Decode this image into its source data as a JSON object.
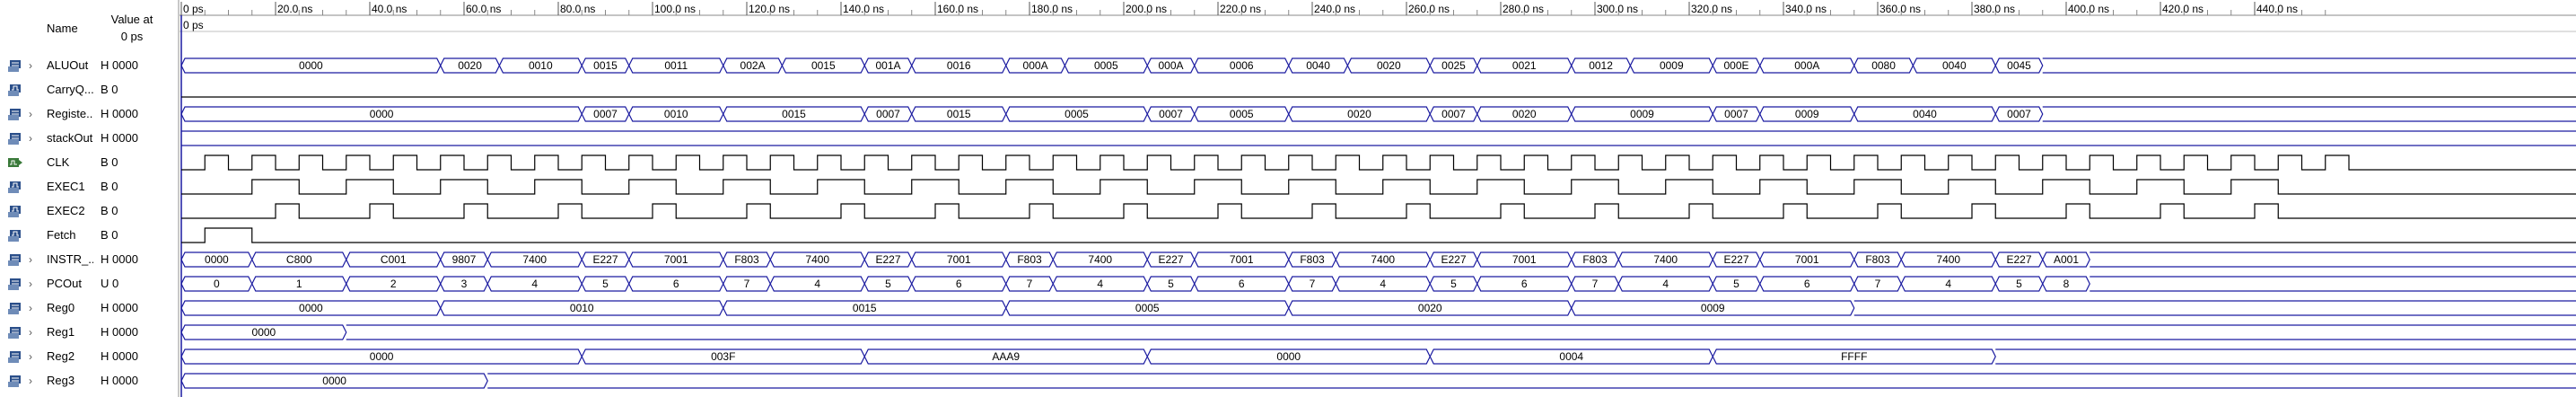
{
  "header": {
    "name_label": "Name",
    "value_label_line1": "Value at",
    "value_label_line2": "0 ps",
    "cursor_label": "0 ps"
  },
  "timeline": {
    "unit": "ns",
    "range_ns": [
      0,
      450
    ],
    "tick_labels": [
      "0 ps",
      "20.0 ns",
      "40.0 ns",
      "60.0 ns",
      "80.0 ns",
      "100.0 ns",
      "120.0 ns",
      "140.0 ns",
      "160.0 ns",
      "180.0 ns",
      "200.0 ns",
      "220.0 ns",
      "240.0 ns",
      "260.0 ns",
      "280.0 ns",
      "300.0 ns",
      "320.0 ns",
      "340.0 ns",
      "360.0 ns",
      "380.0 ns",
      "400.0 ns",
      "420.0 ns",
      "440.0 ns"
    ]
  },
  "colors": {
    "bus": "#1a1aa0",
    "bit": "#000000",
    "grid": "#b0b0b0",
    "icon_out": "#2b4f8a",
    "icon_in": "#3a7a3a"
  },
  "signals": [
    {
      "name": "ALUOut",
      "value": "H 0000",
      "kind": "bus",
      "expand": true,
      "icon": "out-bus-icon",
      "segments": [
        [
          0,
          "0000"
        ],
        [
          55,
          "0020"
        ],
        [
          67.5,
          "0010"
        ],
        [
          85,
          "0015"
        ],
        [
          95,
          "0011"
        ],
        [
          115,
          "002A"
        ],
        [
          127.5,
          "0015"
        ],
        [
          145,
          "001A"
        ],
        [
          155,
          "0016"
        ],
        [
          175,
          "000A"
        ],
        [
          187.5,
          "0005"
        ],
        [
          205,
          "000A"
        ],
        [
          215,
          "0006"
        ],
        [
          235,
          "0040"
        ],
        [
          247.5,
          "0020"
        ],
        [
          265,
          "0025"
        ],
        [
          275,
          "0021"
        ],
        [
          295,
          "0012"
        ],
        [
          307.5,
          "0009"
        ],
        [
          325,
          "000E"
        ],
        [
          335,
          "000A"
        ],
        [
          355,
          "0080"
        ],
        [
          367.5,
          "0040"
        ],
        [
          385,
          "0045"
        ],
        [
          395,
          ""
        ]
      ]
    },
    {
      "name": "CarryOut",
      "display_name": "CarryQ...",
      "value": "B 0",
      "kind": "bit",
      "expand": false,
      "icon": "out-bit-icon",
      "edges": [
        0
      ],
      "levels": [
        0
      ]
    },
    {
      "name": "Register",
      "display_name": "Registe...",
      "value": "H 0000",
      "kind": "bus",
      "expand": true,
      "icon": "out-bus-icon",
      "segments": [
        [
          0,
          "0000"
        ],
        [
          85,
          "0010"
        ],
        [
          85,
          "0007"
        ],
        [
          95,
          "0010"
        ],
        [
          115,
          "0015"
        ],
        [
          145,
          "0007"
        ],
        [
          155,
          "0015"
        ],
        [
          175,
          "0005"
        ],
        [
          205,
          "0007"
        ],
        [
          215,
          "0005"
        ],
        [
          235,
          "0020"
        ],
        [
          265,
          "0007"
        ],
        [
          275,
          "0020"
        ],
        [
          295,
          "0009"
        ],
        [
          325,
          "0007"
        ],
        [
          335,
          "0009"
        ],
        [
          355,
          "0040"
        ],
        [
          385,
          "0007"
        ],
        [
          395,
          ""
        ]
      ]
    },
    {
      "name": "stackOut",
      "value": "H 0000",
      "kind": "bus",
      "expand": true,
      "icon": "out-bus-icon",
      "segments": [
        [
          0,
          ""
        ]
      ]
    },
    {
      "name": "CLK",
      "value": "B 0",
      "kind": "clock",
      "expand": false,
      "icon": "in-bit-icon",
      "period_ns": 5
    },
    {
      "name": "EXEC1",
      "value": "B 0",
      "kind": "bitwave",
      "expand": false,
      "icon": "out-bit-icon",
      "edges": [
        0,
        15,
        25,
        35,
        45,
        55,
        65,
        75,
        85,
        95,
        105,
        115,
        125,
        135,
        145,
        155,
        165,
        175,
        185,
        195,
        205,
        215,
        225,
        235,
        245,
        255,
        265,
        275,
        285,
        295,
        305,
        315,
        325,
        335,
        345,
        355,
        365,
        375,
        385,
        395,
        405,
        415,
        425,
        435,
        445
      ],
      "levels": [
        0,
        1,
        0,
        1,
        0,
        1,
        0,
        1,
        0,
        1,
        0,
        1,
        0,
        1,
        0,
        1,
        0,
        1,
        0,
        1,
        0,
        1,
        0,
        1,
        0,
        1,
        0,
        1,
        0,
        1,
        0,
        1,
        0,
        1,
        0,
        1,
        0,
        1,
        0,
        1,
        0,
        1,
        0,
        1,
        0
      ]
    },
    {
      "name": "EXEC2",
      "value": "B 0",
      "kind": "bitwave",
      "expand": false,
      "icon": "out-bit-icon",
      "edges": [
        0,
        20,
        25,
        40,
        45,
        60,
        65,
        80,
        85,
        100,
        105,
        120,
        125,
        140,
        145,
        160,
        165,
        180,
        185,
        200,
        205,
        220,
        225,
        240,
        245,
        260,
        265,
        280,
        285,
        300,
        305,
        320,
        325,
        340,
        345,
        360,
        365,
        380,
        385,
        400,
        405,
        420,
        425,
        440,
        445
      ],
      "levels": [
        0,
        1,
        0,
        1,
        0,
        1,
        0,
        1,
        0,
        1,
        0,
        1,
        0,
        1,
        0,
        1,
        0,
        1,
        0,
        1,
        0,
        1,
        0,
        1,
        0,
        1,
        0,
        1,
        0,
        1,
        0,
        1,
        0,
        1,
        0,
        1,
        0,
        1,
        0,
        1,
        0,
        1,
        0,
        1,
        0
      ]
    },
    {
      "name": "Fetch",
      "value": "B 0",
      "kind": "bitwave",
      "expand": false,
      "icon": "out-bit-icon",
      "edges": [
        0,
        5,
        15
      ],
      "levels": [
        0,
        1,
        0
      ]
    },
    {
      "name": "INSTR",
      "display_name": "INSTR_...",
      "value": "H 0000",
      "kind": "bus",
      "expand": true,
      "icon": "out-bus-icon",
      "segments": [
        [
          0,
          "0000"
        ],
        [
          15,
          "C800"
        ],
        [
          35,
          "C001"
        ],
        [
          55,
          "9807"
        ],
        [
          65,
          "7400"
        ],
        [
          85,
          "E227"
        ],
        [
          95,
          "7001"
        ],
        [
          115,
          "F803"
        ],
        [
          125,
          "7400"
        ],
        [
          145,
          "E227"
        ],
        [
          155,
          "7001"
        ],
        [
          175,
          "F803"
        ],
        [
          185,
          "7400"
        ],
        [
          205,
          "E227"
        ],
        [
          215,
          "7001"
        ],
        [
          235,
          "F803"
        ],
        [
          245,
          "7400"
        ],
        [
          265,
          "E227"
        ],
        [
          275,
          "7001"
        ],
        [
          295,
          "F803"
        ],
        [
          305,
          "7400"
        ],
        [
          325,
          "E227"
        ],
        [
          335,
          "7001"
        ],
        [
          355,
          "F803"
        ],
        [
          365,
          "7400"
        ],
        [
          385,
          "E227"
        ],
        [
          395,
          "A001"
        ],
        [
          405,
          ""
        ]
      ]
    },
    {
      "name": "PCOut",
      "value": "U 0",
      "kind": "bus",
      "expand": true,
      "icon": "out-bus-icon",
      "segments": [
        [
          0,
          "0"
        ],
        [
          15,
          "1"
        ],
        [
          35,
          "2"
        ],
        [
          55,
          "3"
        ],
        [
          65,
          "4"
        ],
        [
          85,
          "5"
        ],
        [
          95,
          "6"
        ],
        [
          115,
          "7"
        ],
        [
          125,
          "4"
        ],
        [
          145,
          "5"
        ],
        [
          155,
          "6"
        ],
        [
          175,
          "7"
        ],
        [
          185,
          "4"
        ],
        [
          205,
          "5"
        ],
        [
          215,
          "6"
        ],
        [
          235,
          "7"
        ],
        [
          245,
          "4"
        ],
        [
          265,
          "5"
        ],
        [
          275,
          "6"
        ],
        [
          295,
          "7"
        ],
        [
          305,
          "4"
        ],
        [
          325,
          "5"
        ],
        [
          335,
          "6"
        ],
        [
          355,
          "7"
        ],
        [
          365,
          "4"
        ],
        [
          385,
          "5"
        ],
        [
          395,
          "8"
        ],
        [
          405,
          ""
        ]
      ]
    },
    {
      "name": "Reg0",
      "value": "H 0000",
      "kind": "bus",
      "expand": true,
      "icon": "out-bus-icon",
      "segments": [
        [
          0,
          "0000"
        ],
        [
          55,
          "0010"
        ],
        [
          115,
          "0015"
        ],
        [
          175,
          "0005"
        ],
        [
          235,
          "0020"
        ],
        [
          295,
          "0009"
        ],
        [
          355,
          ""
        ]
      ]
    },
    {
      "name": "Reg1",
      "value": "H 0000",
      "kind": "bus",
      "expand": true,
      "icon": "out-bus-icon",
      "segments": [
        [
          0,
          "0000"
        ],
        [
          35,
          ""
        ]
      ]
    },
    {
      "name": "Reg2",
      "value": "H 0000",
      "kind": "bus",
      "expand": true,
      "icon": "out-bus-icon",
      "segments": [
        [
          0,
          "0000"
        ],
        [
          85,
          "003F"
        ],
        [
          145,
          "AAA9"
        ],
        [
          205,
          "0000"
        ],
        [
          265,
          "0004"
        ],
        [
          325,
          "FFFF"
        ],
        [
          385,
          ""
        ]
      ]
    },
    {
      "name": "Reg3",
      "value": "H 0000",
      "kind": "bus",
      "expand": true,
      "icon": "out-bus-icon",
      "segments": [
        [
          0,
          "0000"
        ],
        [
          65,
          ""
        ]
      ]
    }
  ]
}
